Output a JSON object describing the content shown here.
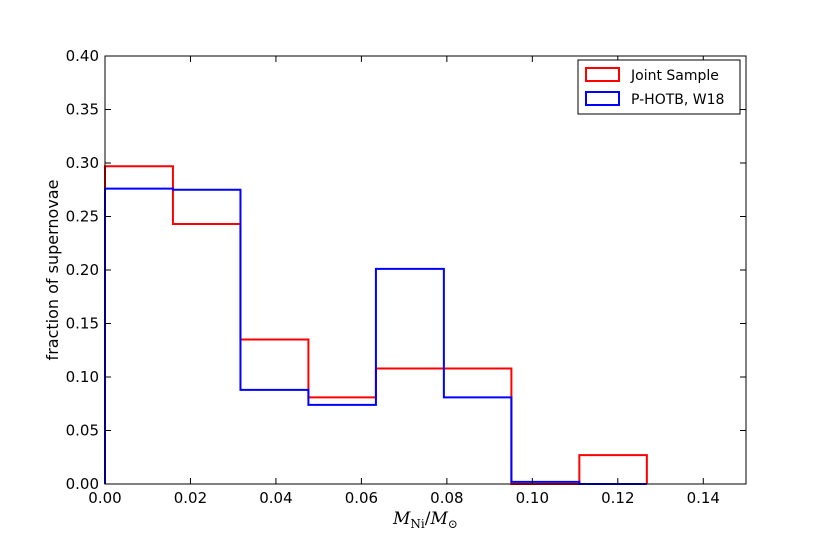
{
  "chart_data": {
    "type": "histogram",
    "xlabel_main": "M",
    "xlabel_sub1": "Ni",
    "xlabel_sep": "/",
    "xlabel_main2": "M",
    "xlabel_sub2": "⊙",
    "ylabel": "fraction of supernovae",
    "xlim": [
      0.0,
      0.15
    ],
    "ylim": [
      0.0,
      0.4
    ],
    "xticks": [
      "0.00",
      "0.02",
      "0.04",
      "0.06",
      "0.08",
      "0.10",
      "0.12",
      "0.14"
    ],
    "yticks": [
      "0.00",
      "0.05",
      "0.10",
      "0.15",
      "0.20",
      "0.25",
      "0.30",
      "0.35",
      "0.40"
    ],
    "legend_position": "top-right",
    "series": [
      {
        "name": "Joint Sample",
        "color": "#ff0000",
        "bin_edges": [
          0.0,
          0.0159,
          0.0317,
          0.0476,
          0.0634,
          0.0793,
          0.0951,
          0.111,
          0.1268
        ],
        "values": [
          0.297,
          0.243,
          0.135,
          0.081,
          0.108,
          0.108,
          0.0,
          0.027
        ]
      },
      {
        "name": "P-HOTB, W18",
        "color": "#0000ff",
        "bin_edges": [
          0.0,
          0.0159,
          0.0317,
          0.0476,
          0.0634,
          0.0793,
          0.0951,
          0.111,
          0.1268
        ],
        "values": [
          0.276,
          0.275,
          0.088,
          0.074,
          0.201,
          0.081,
          0.002,
          0.0
        ]
      }
    ]
  }
}
